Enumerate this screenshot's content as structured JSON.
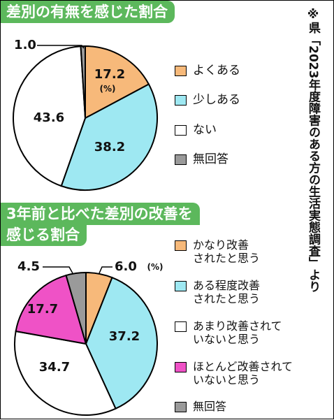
{
  "chart_data": [
    {
      "type": "pie",
      "title": "差別の有無を感じた割合",
      "unit_label": "(%)",
      "categories": [
        "よくある",
        "少しある",
        "ない",
        "無回答"
      ],
      "values": [
        17.2,
        38.2,
        43.6,
        1.0
      ],
      "colors": [
        "#f7b97a",
        "#9ee8f2",
        "#ffffff",
        "#9a9a9a"
      ],
      "legend_position": "right"
    },
    {
      "type": "pie",
      "title_line1": "3年前と比べた差別の改善を",
      "title_line2": "感じる割合",
      "unit_label": "(%)",
      "categories": [
        "かなり改善されたと思う",
        "ある程度改善されたと思う",
        "あまり改善されていないと思う",
        "ほとんど改善されていないと思う",
        "無回答"
      ],
      "legend_lines": [
        [
          "かなり改善",
          "されたと思う"
        ],
        [
          "ある程度改善",
          "されたと思う"
        ],
        [
          "あまり改善されて",
          "いないと思う"
        ],
        [
          "ほとんど改善されて",
          "いないと思う"
        ],
        [
          "無回答"
        ]
      ],
      "values": [
        6.0,
        37.2,
        34.7,
        17.7,
        4.5
      ],
      "colors": [
        "#f7b97a",
        "#9ee8f2",
        "#ffffff",
        "#ef52c6",
        "#9a9a9a"
      ],
      "legend_position": "right"
    }
  ],
  "source_note": "※県「2023年度障害のある方の生活実態調査」より"
}
